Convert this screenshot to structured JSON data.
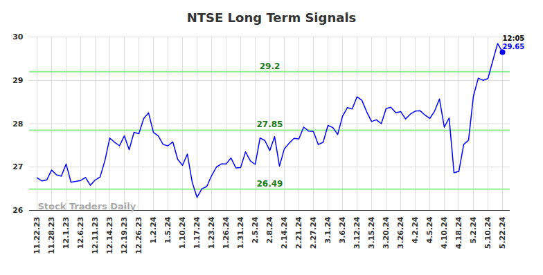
{
  "chart_data": {
    "type": "line",
    "title": "NTSE Long Term Signals",
    "watermark": "Stock Traders Daily",
    "categories": [
      "11.22.23",
      null,
      null,
      "11.28.23",
      null,
      null,
      "12.1.23",
      null,
      null,
      "12.6.23",
      null,
      null,
      "12.11.23",
      null,
      null,
      "12.14.23",
      null,
      null,
      "12.19.23",
      null,
      null,
      "12.26.23",
      null,
      null,
      "1.2.24",
      null,
      null,
      "1.5.24",
      null,
      null,
      "1.10.24",
      null,
      null,
      "1.17.24",
      null,
      null,
      "1.23.24",
      null,
      null,
      "1.26.24",
      null,
      null,
      "1.31.24",
      null,
      null,
      "2.5.24",
      null,
      null,
      "2.8.24",
      null,
      null,
      "2.14.24",
      null,
      null,
      "2.21.24",
      null,
      null,
      "2.27.24",
      null,
      null,
      "3.1.24",
      null,
      null,
      "3.6.24",
      null,
      null,
      "3.12.24",
      null,
      null,
      "3.15.24",
      null,
      null,
      "3.20.24",
      null,
      null,
      "3.26.24",
      null,
      null,
      "4.2.24",
      null,
      null,
      "4.5.24",
      null,
      null,
      "4.10.24",
      null,
      null,
      "4.18.24",
      null,
      null,
      "5.2.24",
      null,
      null,
      "5.10.24",
      null,
      null,
      "5.22.24"
    ],
    "values": [
      26.75,
      26.68,
      26.7,
      26.93,
      26.82,
      26.79,
      27.07,
      26.65,
      26.67,
      26.69,
      26.76,
      26.58,
      26.7,
      26.77,
      27.15,
      27.67,
      27.57,
      27.49,
      27.72,
      27.4,
      27.8,
      27.77,
      28.12,
      28.25,
      27.8,
      27.72,
      27.52,
      27.49,
      27.58,
      27.18,
      27.04,
      27.3,
      26.65,
      26.3,
      26.5,
      26.55,
      26.8,
      27.0,
      27.07,
      27.07,
      27.21,
      26.98,
      26.99,
      27.35,
      27.14,
      27.06,
      27.67,
      27.61,
      27.38,
      27.7,
      27.02,
      27.42,
      27.55,
      27.66,
      27.65,
      27.92,
      27.83,
      27.82,
      27.52,
      27.57,
      27.96,
      27.91,
      27.75,
      28.17,
      28.37,
      28.34,
      28.62,
      28.54,
      28.27,
      28.05,
      28.09,
      28.0,
      28.35,
      28.38,
      28.25,
      28.28,
      28.11,
      28.22,
      28.29,
      28.3,
      28.2,
      28.12,
      28.29,
      28.57,
      27.92,
      28.13,
      26.87,
      26.9,
      27.52,
      27.62,
      28.63,
      29.05,
      29.0,
      29.04,
      29.45,
      29.85,
      29.65
    ],
    "color": "#0000ff",
    "signals": [
      29.2,
      27.85,
      26.49
    ],
    "signal_color": "#90ee90",
    "end_time": "12:05",
    "ylim": [
      26,
      30
    ],
    "yticks": [
      26,
      27,
      28,
      29,
      30
    ],
    "grid": true
  }
}
